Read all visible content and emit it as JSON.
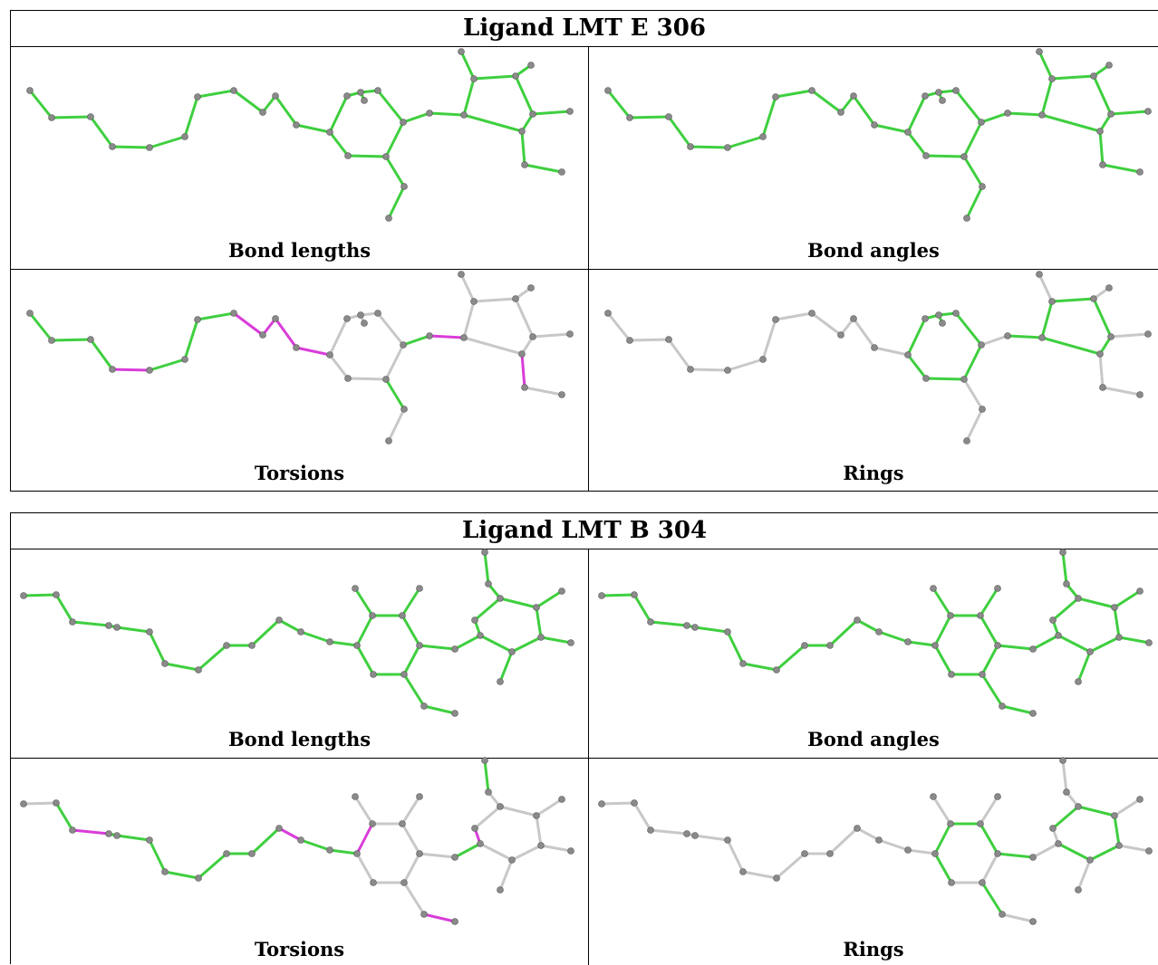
{
  "ligands": [
    {
      "title": "Ligand LMT E 306",
      "panels": [
        "Bond lengths",
        "Bond angles",
        "Torsions",
        "Rings"
      ]
    },
    {
      "title": "Ligand LMT B 304",
      "panels": [
        "Bond lengths",
        "Bond angles",
        "Torsions",
        "Rings"
      ]
    }
  ],
  "colors": {
    "ok": "#3fcf3f",
    "outlier": "#d93cd9",
    "unused": "#c8c8c8",
    "atom": "#8a8a8a"
  }
}
